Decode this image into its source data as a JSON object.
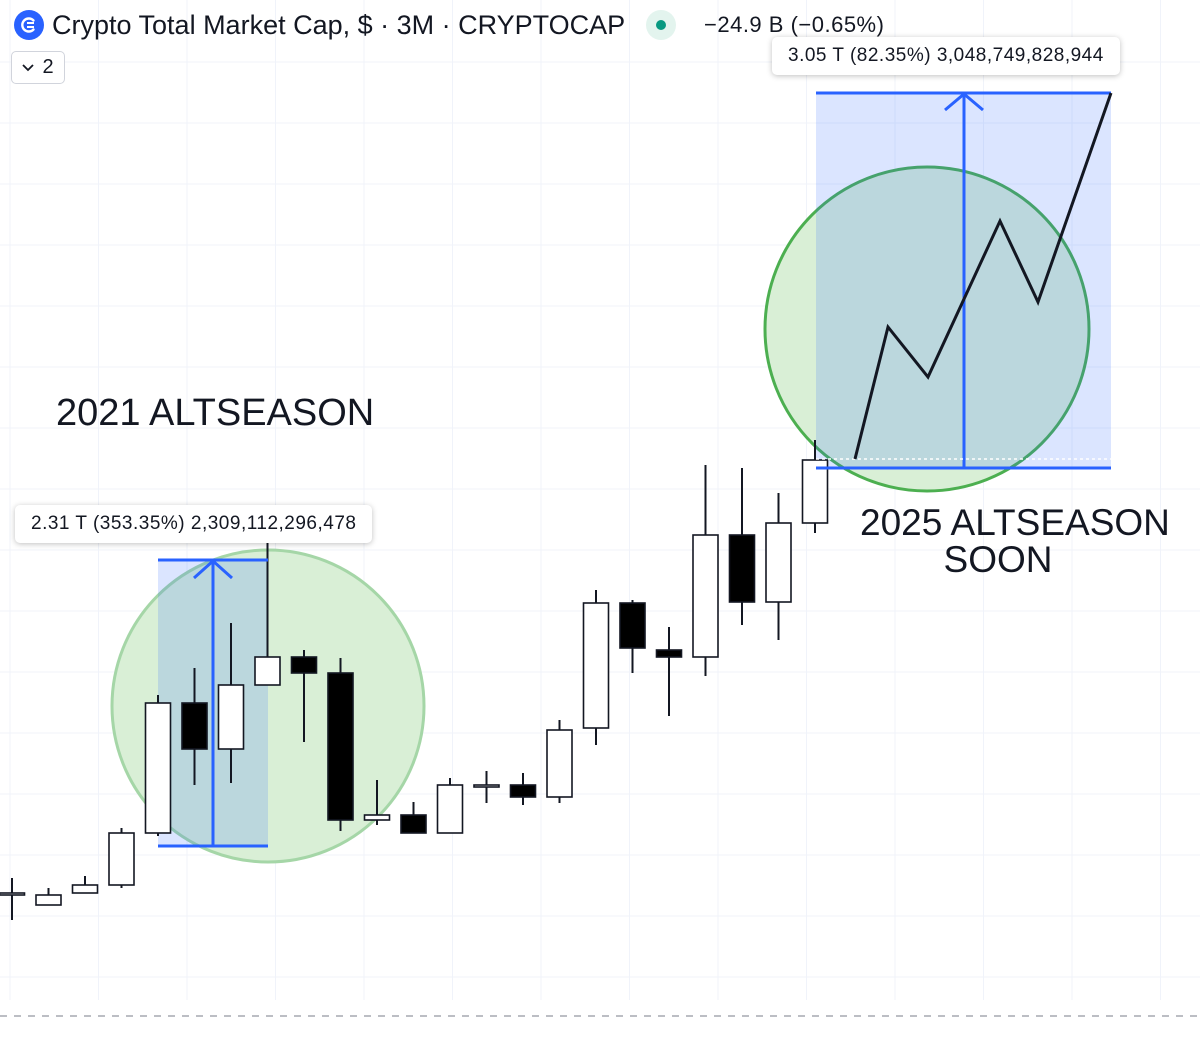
{
  "header": {
    "title": "Crypto Total Market Cap, $ · 3M · CRYPTOCAP",
    "change": "−24.9 B (−0.65%)",
    "collapse_count": "2"
  },
  "colors": {
    "accent": "#2962ff",
    "status": "#089981",
    "candle_up_fill": "#ffffff",
    "candle_down_fill": "#000000",
    "circle_fill": "#d9efd6",
    "circle_stroke": "#4caf50",
    "range_fill": "#d6e0fb"
  },
  "icons": [
    "crypto-logo-icon",
    "status-dot-icon",
    "chevron-down-icon",
    "arrow-up-icon"
  ],
  "measures": {
    "first": "2.31 T (353.35%) 2,309,112,296,478",
    "second": "3.05 T (82.35%) 3,048,749,828,944"
  },
  "annotations": {
    "altseason_2021": "2021 ALTSEASON",
    "altseason_2025_line1": "2025 ALTSEASON",
    "altseason_2025_line2": "SOON"
  },
  "chart_data": {
    "type": "candlestick",
    "title": "Crypto Total Market Cap, $ · 3M · CRYPTOCAP",
    "symbol": "CRYPTOCAP",
    "interval": "3M",
    "grid": true,
    "candles_relative": [
      {
        "o": 893,
        "h": 878,
        "l": 920,
        "c": 893,
        "up": true
      },
      {
        "o": 905,
        "h": 888,
        "l": 905,
        "c": 895,
        "up": true
      },
      {
        "o": 893,
        "h": 876,
        "l": 893,
        "c": 885,
        "up": true
      },
      {
        "o": 885,
        "h": 828,
        "l": 888,
        "c": 833,
        "up": true
      },
      {
        "o": 833,
        "h": 695,
        "l": 836,
        "c": 703,
        "up": true
      },
      {
        "o": 703,
        "h": 668,
        "l": 785,
        "c": 749,
        "up": false
      },
      {
        "o": 749,
        "h": 623,
        "l": 783,
        "c": 685,
        "up": true
      },
      {
        "o": 685,
        "h": 540,
        "l": 685,
        "c": 657,
        "up": true
      },
      {
        "o": 657,
        "h": 650,
        "l": 742,
        "c": 673,
        "up": false
      },
      {
        "o": 673,
        "h": 658,
        "l": 831,
        "c": 820,
        "up": false
      },
      {
        "o": 820,
        "h": 780,
        "l": 825,
        "c": 815,
        "up": true
      },
      {
        "o": 815,
        "h": 802,
        "l": 833,
        "c": 833,
        "up": false
      },
      {
        "o": 833,
        "h": 778,
        "l": 833,
        "c": 785,
        "up": true
      },
      {
        "o": 785,
        "h": 771,
        "l": 803,
        "c": 785,
        "up": true
      },
      {
        "o": 785,
        "h": 773,
        "l": 805,
        "c": 797,
        "up": false
      },
      {
        "o": 797,
        "h": 720,
        "l": 803,
        "c": 730,
        "up": true
      },
      {
        "o": 728,
        "h": 590,
        "l": 745,
        "c": 603,
        "up": true
      },
      {
        "o": 603,
        "h": 600,
        "l": 673,
        "c": 648,
        "up": false
      },
      {
        "o": 650,
        "h": 627,
        "l": 716,
        "c": 657,
        "up": false
      },
      {
        "o": 657,
        "h": 465,
        "l": 676,
        "c": 535,
        "up": true
      },
      {
        "o": 535,
        "h": 468,
        "l": 625,
        "c": 602,
        "up": false
      },
      {
        "o": 602,
        "h": 493,
        "l": 640,
        "c": 523,
        "up": true
      },
      {
        "o": 523,
        "h": 440,
        "l": 533,
        "c": 460,
        "up": true
      }
    ],
    "measures": [
      {
        "label": "2.31 T (353.35%) 2,309,112,296,478",
        "change_value": "2.31 T",
        "change_pct": 353.35,
        "value": 2309112296478
      },
      {
        "label": "3.05 T (82.35%) 3,048,749,828,944",
        "change_value": "3.05 T",
        "change_pct": 82.35,
        "value": 3048749828944
      }
    ],
    "annotations": [
      "2021 ALTSEASON",
      "2025 ALTSEASON SOON"
    ]
  }
}
